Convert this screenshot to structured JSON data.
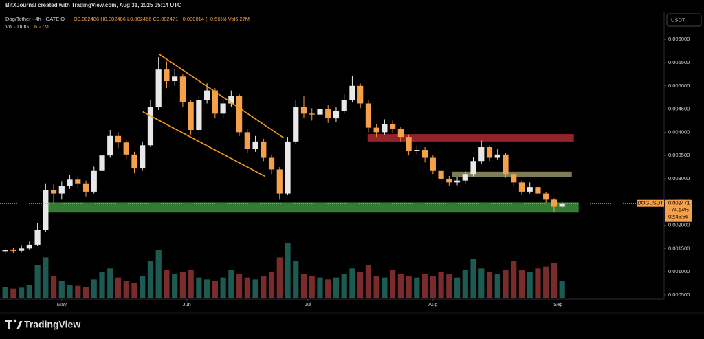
{
  "chart_data": {
    "type": "candlestick",
    "credit": "BitXJournal created with TradingView.com, Aug 31, 2025 05:14 UTC",
    "symbol": "Dog/Tether · 4h · GATEIO",
    "ohlc": "O0.002486 H0.002486 L0.002466 C0.002471 −0.000014 (−0.56%) Vol6.27M",
    "volume_label": "Vol · DOG",
    "volume_value": "6.27M",
    "currency_button": "USDT",
    "brand": "TradingView",
    "up_color": "#e8e8e8",
    "down_color": "#f5a04a",
    "volume_up_color": "#1d5a52",
    "volume_down_color": "#7a2b2b",
    "x": [
      0,
      2,
      4,
      6,
      8,
      10,
      12,
      14,
      16,
      18,
      20,
      22,
      24,
      26,
      28,
      30,
      32,
      34,
      36,
      38,
      40,
      42,
      44,
      46,
      48,
      50,
      52,
      54,
      56,
      58,
      60,
      62,
      64,
      66,
      68,
      70,
      72,
      74,
      76,
      78,
      80,
      82,
      84,
      86,
      88,
      90,
      92,
      94,
      96,
      98,
      100,
      102,
      104,
      106,
      108,
      110,
      112,
      114,
      116,
      118,
      120,
      122,
      124,
      126,
      128,
      130,
      132,
      134,
      136,
      138
    ],
    "open": [
      0.00144,
      0.00146,
      0.00145,
      0.0015,
      0.00158,
      0.0019,
      0.00275,
      0.00268,
      0.00285,
      0.00298,
      0.0029,
      0.00272,
      0.00318,
      0.0035,
      0.00392,
      0.00378,
      0.00352,
      0.00322,
      0.00372,
      0.00455,
      0.00535,
      0.0051,
      0.0052,
      0.00465,
      0.00405,
      0.0047,
      0.0049,
      0.0044,
      0.00462,
      0.00478,
      0.004,
      0.00365,
      0.0038,
      0.00345,
      0.0032,
      0.00268,
      0.0038,
      0.00455,
      0.0044,
      0.00438,
      0.0045,
      0.0043,
      0.00445,
      0.0047,
      0.005,
      0.00462,
      0.0041,
      0.004,
      0.00418,
      0.00408,
      0.0039,
      0.0036,
      0.00362,
      0.00345,
      0.00318,
      0.003,
      0.00292,
      0.00296,
      0.0031,
      0.00338,
      0.00368,
      0.00345,
      0.00352,
      0.0031,
      0.00292,
      0.00272,
      0.00282,
      0.00268,
      0.00255,
      0.0024
    ],
    "high": [
      0.00152,
      0.00151,
      0.00156,
      0.00165,
      0.00205,
      0.0029,
      0.00288,
      0.00295,
      0.00308,
      0.00305,
      0.00296,
      0.00326,
      0.00362,
      0.00405,
      0.004,
      0.00385,
      0.00358,
      0.0038,
      0.0047,
      0.00562,
      0.00552,
      0.00536,
      0.00525,
      0.0047,
      0.0048,
      0.00505,
      0.00495,
      0.00472,
      0.0049,
      0.00482,
      0.00408,
      0.00392,
      0.00386,
      0.00352,
      0.00325,
      0.0039,
      0.0047,
      0.00478,
      0.00452,
      0.00462,
      0.00458,
      0.00455,
      0.00482,
      0.00522,
      0.00505,
      0.00468,
      0.00418,
      0.00428,
      0.00425,
      0.00412,
      0.00395,
      0.00372,
      0.00368,
      0.0035,
      0.00322,
      0.00306,
      0.00304,
      0.00318,
      0.00346,
      0.00382,
      0.00372,
      0.00365,
      0.00356,
      0.00315,
      0.00296,
      0.00292,
      0.00286,
      0.00272,
      0.00258,
      0.00252
    ],
    "low": [
      0.00139,
      0.0014,
      0.00141,
      0.00146,
      0.00155,
      0.00185,
      0.00245,
      0.00255,
      0.00278,
      0.0028,
      0.00262,
      0.00268,
      0.00312,
      0.00345,
      0.00366,
      0.0034,
      0.00312,
      0.00318,
      0.00368,
      0.00448,
      0.00495,
      0.005,
      0.00455,
      0.00395,
      0.004,
      0.00462,
      0.0043,
      0.00432,
      0.00455,
      0.00392,
      0.00355,
      0.00358,
      0.00338,
      0.0031,
      0.00255,
      0.00265,
      0.00375,
      0.0043,
      0.00425,
      0.0043,
      0.0042,
      0.00422,
      0.0044,
      0.00465,
      0.00452,
      0.004,
      0.0039,
      0.00395,
      0.00398,
      0.0038,
      0.0035,
      0.00352,
      0.00335,
      0.0031,
      0.0029,
      0.00284,
      0.00286,
      0.0029,
      0.00305,
      0.00332,
      0.00338,
      0.0034,
      0.00302,
      0.00285,
      0.00266,
      0.00268,
      0.0026,
      0.00248,
      0.00228,
      0.00238
    ],
    "close": [
      0.00146,
      0.00145,
      0.0015,
      0.00158,
      0.0019,
      0.00275,
      0.00268,
      0.00285,
      0.00298,
      0.0029,
      0.00272,
      0.00318,
      0.0035,
      0.00392,
      0.00378,
      0.00352,
      0.00322,
      0.00372,
      0.00455,
      0.00535,
      0.0051,
      0.0052,
      0.00465,
      0.00405,
      0.0047,
      0.0049,
      0.0044,
      0.00462,
      0.00478,
      0.004,
      0.00365,
      0.0038,
      0.00345,
      0.0032,
      0.00268,
      0.0038,
      0.00455,
      0.0044,
      0.00438,
      0.0045,
      0.0043,
      0.00445,
      0.0047,
      0.005,
      0.00462,
      0.0041,
      0.004,
      0.00418,
      0.00408,
      0.0039,
      0.0036,
      0.00362,
      0.00345,
      0.00318,
      0.003,
      0.00292,
      0.00296,
      0.0031,
      0.00338,
      0.00368,
      0.00345,
      0.00352,
      0.0031,
      0.00292,
      0.00272,
      0.00282,
      0.00268,
      0.00255,
      0.0024,
      0.002471
    ],
    "volume": [
      60,
      50,
      55,
      70,
      180,
      220,
      120,
      90,
      70,
      65,
      60,
      100,
      140,
      160,
      110,
      90,
      80,
      120,
      200,
      260,
      150,
      130,
      140,
      150,
      110,
      100,
      90,
      110,
      150,
      130,
      110,
      100,
      120,
      140,
      220,
      300,
      200,
      130,
      120,
      110,
      100,
      110,
      130,
      160,
      140,
      180,
      120,
      110,
      150,
      130,
      120,
      110,
      130,
      120,
      140,
      130,
      110,
      150,
      210,
      160,
      140,
      130,
      150,
      200,
      150,
      140,
      160,
      170,
      190,
      90
    ],
    "xlim": [
      -1.3,
      163.1
    ],
    "xticks": [
      {
        "value": 14,
        "label": "May"
      },
      {
        "value": 45,
        "label": "Jun"
      },
      {
        "value": 75,
        "label": "Jul"
      },
      {
        "value": 106,
        "label": "Aug"
      },
      {
        "value": 137,
        "label": "Sep"
      }
    ],
    "ylim": [
      0.00041,
      0.00658
    ],
    "yticks": [
      {
        "value": 0.0005,
        "label": "0.000500"
      },
      {
        "value": 0.001,
        "label": "0.001000"
      },
      {
        "value": 0.0015,
        "label": "0.001500"
      },
      {
        "value": 0.002,
        "label": "0.002000"
      },
      {
        "value": 0.0025,
        "label": "0.002500"
      },
      {
        "value": 0.003,
        "label": "0.003000"
      },
      {
        "value": 0.0035,
        "label": "0.003500"
      },
      {
        "value": 0.004,
        "label": "0.004000"
      },
      {
        "value": 0.0045,
        "label": "0.004500"
      },
      {
        "value": 0.005,
        "label": "0.005000"
      },
      {
        "value": 0.0055,
        "label": "0.005500"
      },
      {
        "value": 0.006,
        "label": "0.006000"
      }
    ],
    "zones": [
      {
        "color": "#a3262f",
        "from": 0.0038,
        "to": 0.00396,
        "start": 89.8,
        "end": 140.9
      },
      {
        "color": "#8c8a62",
        "from": 0.00303,
        "to": 0.00315,
        "start": 110.8,
        "end": 140.4
      },
      {
        "color": "#3a8a3a",
        "from": 0.00227,
        "to": 0.00249,
        "start": 10.1,
        "end": 142.1
      }
    ],
    "trendlines": [
      {
        "color": "#f59c1a",
        "x": [
          38.0,
          69.0
        ],
        "y": [
          0.00569,
          0.00388
        ]
      },
      {
        "color": "#f59c1a",
        "x": [
          34.1,
          64.4
        ],
        "y": [
          0.00444,
          0.00305
        ]
      }
    ],
    "last_price": {
      "symbol": "DOGUSDT",
      "value": 0.002471,
      "change": "+74.14%",
      "countdown": "02:45:56"
    }
  }
}
